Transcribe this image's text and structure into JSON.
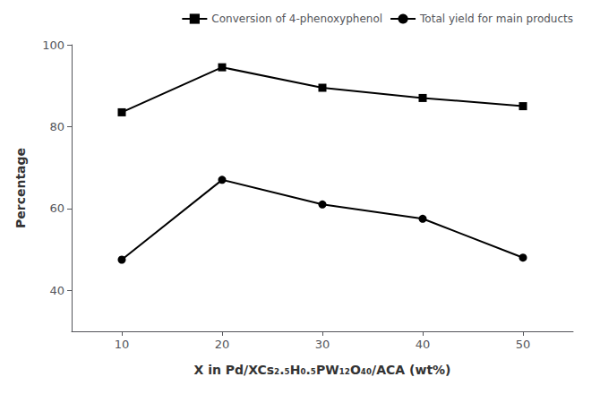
{
  "chart_data": {
    "type": "line",
    "x": [
      10,
      20,
      30,
      40,
      50
    ],
    "series": [
      {
        "name": "Conversion of 4-phenoxyphenol",
        "color": "black",
        "marker": "square",
        "line_style": "solid",
        "values": [
          83.5,
          94.5,
          89.5,
          87.0,
          85.0
        ]
      },
      {
        "name": "Total yield for main products",
        "color": "black",
        "marker": "circle",
        "line_style": "solid",
        "values": [
          47.5,
          67.0,
          61.0,
          57.5,
          48.0
        ]
      }
    ],
    "xlabel": "X in Pd/XCs₂.₅H₀.₅PW₁₂O₄₀/ACA (wt%)",
    "ylabel": "Percentage",
    "xlim": [
      5,
      55
    ],
    "xticks": [
      10,
      20,
      30,
      40,
      50
    ],
    "ylim": [
      30,
      100
    ],
    "yticks": [
      40,
      60,
      80,
      100
    ],
    "grid": false,
    "legend": "upper right"
  }
}
